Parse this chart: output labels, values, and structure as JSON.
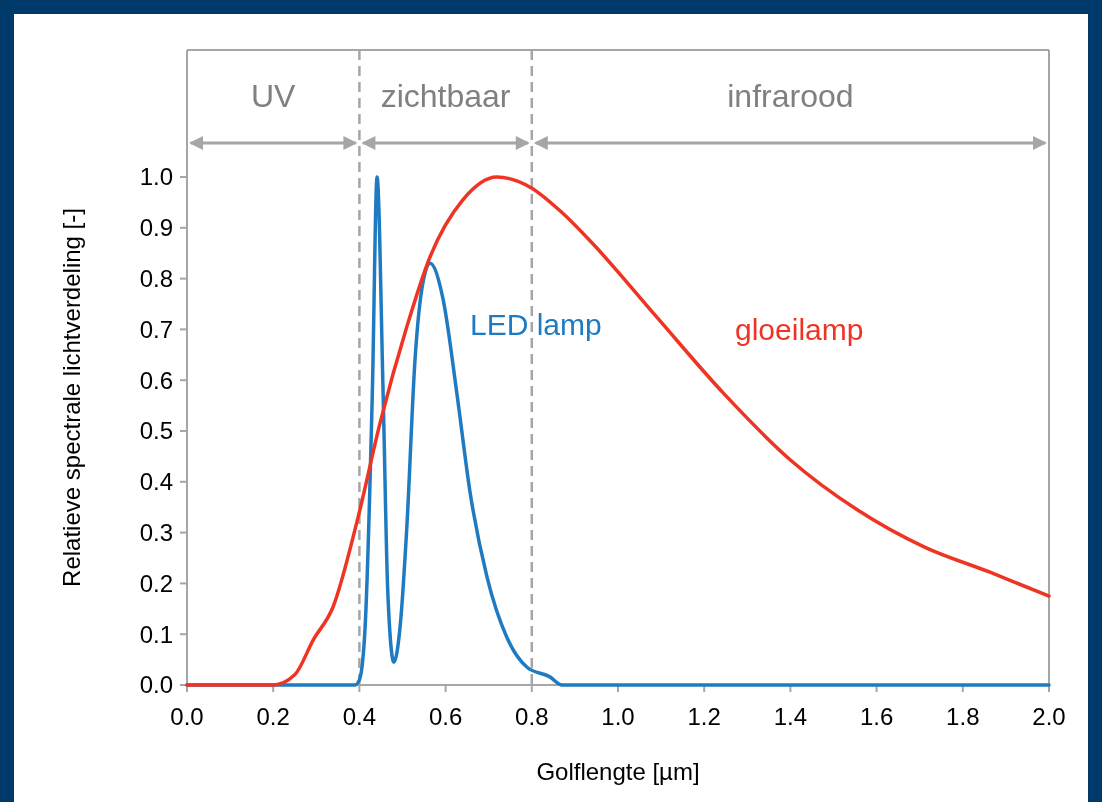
{
  "chart_data": {
    "type": "line",
    "xlabel": "Golflengte [µm]",
    "ylabel": "Relatieve spectrale lichtverdeling [-]",
    "xlim": [
      0,
      2
    ],
    "ylim": [
      0,
      1.25
    ],
    "xticks": [
      {
        "value": 0,
        "label": "0.0"
      },
      0.2,
      0.4,
      0.6,
      0.8,
      {
        "value": 1,
        "label": "1.0"
      },
      1.2,
      1.4,
      1.6,
      1.8,
      {
        "value": 2,
        "label": "2.0"
      }
    ],
    "yticks": [
      {
        "value": 0,
        "label": "0.0"
      },
      0.1,
      0.2,
      0.3,
      0.4,
      0.5,
      0.6,
      0.7,
      0.8,
      0.9,
      {
        "value": 1,
        "label": "1.0"
      }
    ],
    "grid": false,
    "line_style": "solid",
    "marker": "none",
    "series": [
      {
        "name": "LED lamp",
        "color": "#1f7bc1",
        "x": [
          0,
          0.39,
          0.4,
          0.413,
          0.43,
          0.441,
          0.455,
          0.466,
          0.48,
          0.495,
          0.51,
          0.529,
          0.545,
          0.564,
          0.594,
          0.626,
          0.657,
          0.696,
          0.742,
          0.789,
          0.842,
          0.87,
          2
        ],
        "values": [
          0,
          0,
          0.01,
          0.11,
          0.575,
          1.0,
          0.575,
          0.18,
          0.045,
          0.12,
          0.31,
          0.64,
          0.78,
          0.83,
          0.76,
          0.575,
          0.378,
          0.213,
          0.094,
          0.035,
          0.016,
          0,
          0
        ]
      },
      {
        "name": "gloeilamp",
        "color": "#ee3524",
        "x": [
          0,
          0.2,
          0.25,
          0.293,
          0.339,
          0.394,
          0.448,
          0.51,
          0.564,
          0.64,
          0.719,
          0.796,
          0.87,
          0.94,
          1.09,
          1.244,
          1.4,
          1.555,
          1.71,
          1.863,
          2
        ],
        "values": [
          0,
          0,
          0.02,
          0.089,
          0.154,
          0.32,
          0.516,
          0.705,
          0.843,
          0.955,
          1.0,
          0.98,
          0.93,
          0.87,
          0.724,
          0.575,
          0.443,
          0.345,
          0.272,
          0.222,
          0.175
        ]
      }
    ],
    "ref_lines": [
      {
        "axis": "x",
        "value": 0.4,
        "color": "#a6a6a6",
        "line_style": "dashed"
      },
      {
        "axis": "x",
        "value": 0.8,
        "color": "#a6a6a6",
        "line_style": "dashed"
      }
    ],
    "annotations": [
      "UV",
      "zichtbaar",
      "infrarood"
    ]
  }
}
